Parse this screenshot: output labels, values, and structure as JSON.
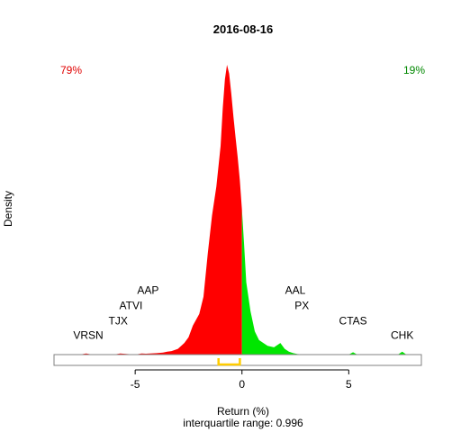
{
  "chart_data": {
    "type": "area",
    "title": "2016-08-16",
    "xlabel": "Return (%)",
    "subtitle": "interquartile range: 0.996",
    "ylabel": "Density",
    "xlim": [
      -8.8,
      8.4
    ],
    "x_ticks": [
      -5,
      0,
      5
    ],
    "x_tick_labels": [
      "-5",
      "0",
      "5"
    ],
    "pct_negative": "79%",
    "pct_positive": "19%",
    "colors": {
      "negative": "#ff0000",
      "positive": "#00e600",
      "iqr": "#ffcc00",
      "neg_text": "#e00000",
      "pos_text": "#008800"
    },
    "iqr": [
      -1.1,
      -0.1
    ],
    "density": {
      "x": [
        -7.6,
        -7.3,
        -7.0,
        -6.0,
        -5.7,
        -5.0,
        -4.7,
        -4.5,
        -4.0,
        -3.7,
        -3.5,
        -3.3,
        -3.0,
        -2.7,
        -2.5,
        -2.3,
        -2.0,
        -1.8,
        -1.6,
        -1.4,
        -1.2,
        -1.0,
        -0.9,
        -0.8,
        -0.7,
        -0.6,
        -0.5,
        -0.4,
        -0.3,
        -0.2,
        -0.1,
        0.0,
        0.1,
        0.2,
        0.4,
        0.6,
        0.8,
        1.0,
        1.2,
        1.5,
        1.8,
        2.0,
        2.2,
        2.4,
        2.6,
        3.0,
        3.2,
        5.0,
        5.2,
        5.4,
        7.3,
        7.5,
        7.7
      ],
      "y": [
        0.0,
        0.004,
        0.0,
        0.0,
        0.004,
        0.0,
        0.004,
        0.003,
        0.005,
        0.007,
        0.01,
        0.012,
        0.02,
        0.04,
        0.06,
        0.1,
        0.14,
        0.2,
        0.35,
        0.48,
        0.58,
        0.72,
        0.85,
        0.95,
        1.0,
        0.97,
        0.9,
        0.82,
        0.75,
        0.68,
        0.6,
        0.5,
        0.38,
        0.25,
        0.15,
        0.08,
        0.05,
        0.04,
        0.03,
        0.025,
        0.04,
        0.02,
        0.01,
        0.005,
        0.002,
        0.0,
        0.0,
        0.0,
        0.008,
        0.0,
        0.0,
        0.01,
        0.0
      ]
    },
    "annotations": [
      {
        "text": "VRSN",
        "x": -7.2,
        "y": 0.054
      },
      {
        "text": "TJX",
        "x": -5.8,
        "y": 0.104
      },
      {
        "text": "ATVI",
        "x": -5.2,
        "y": 0.157
      },
      {
        "text": "AAP",
        "x": -4.4,
        "y": 0.209
      },
      {
        "text": "AAL",
        "x": 2.5,
        "y": 0.209
      },
      {
        "text": "PX",
        "x": 2.8,
        "y": 0.157
      },
      {
        "text": "CTAS",
        "x": 5.2,
        "y": 0.104
      },
      {
        "text": "CHK",
        "x": 7.5,
        "y": 0.054
      }
    ]
  }
}
